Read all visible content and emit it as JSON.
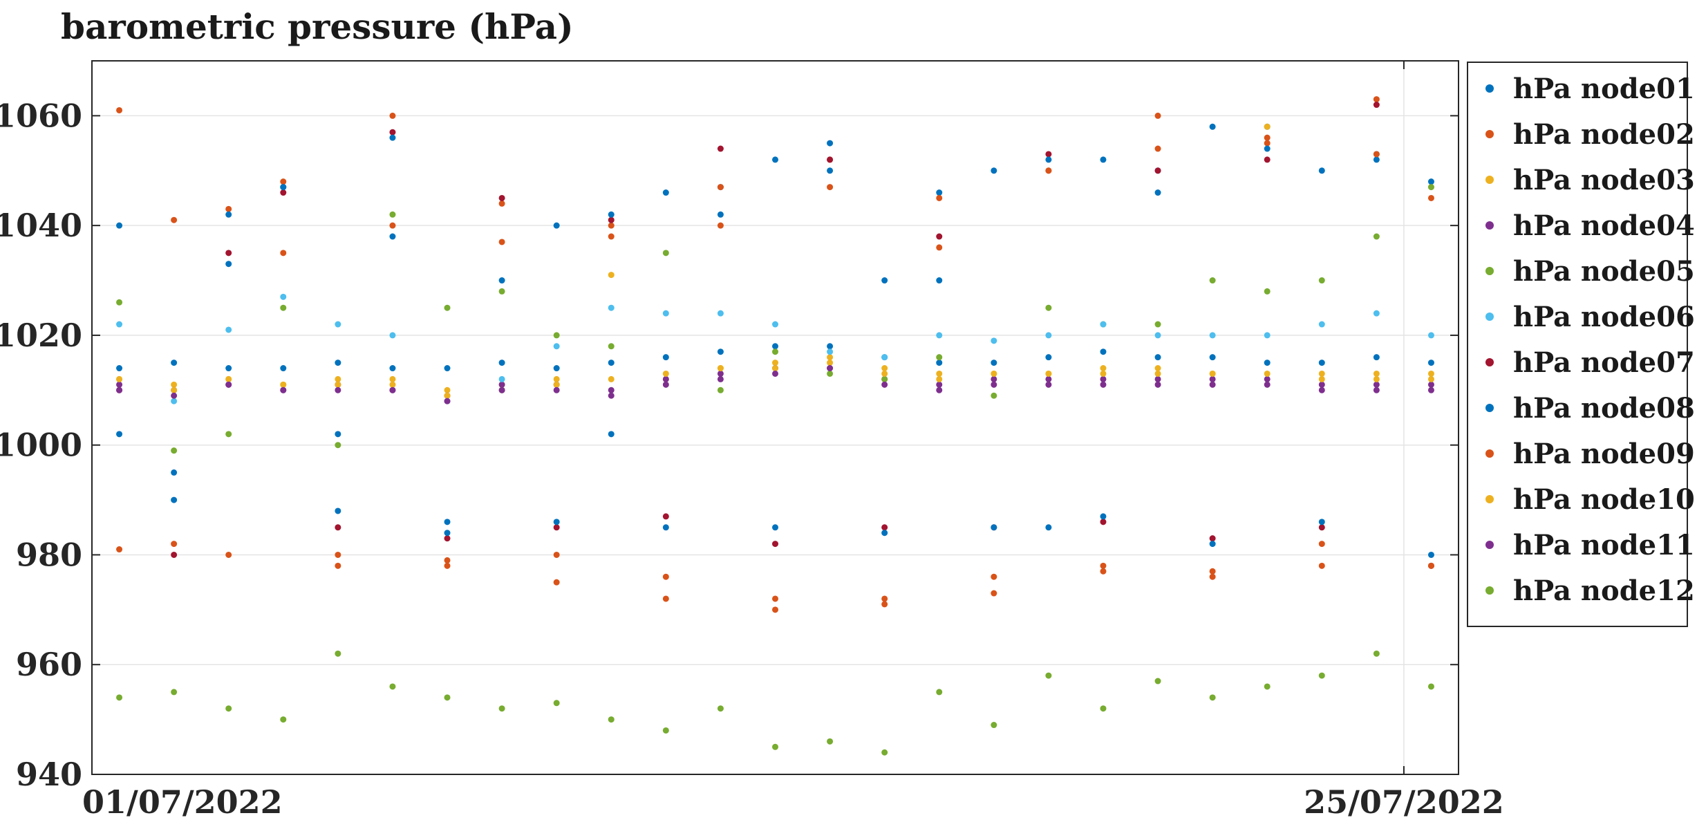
{
  "chart_data": {
    "type": "scatter",
    "title": "barometric pressure (hPa)",
    "xlabel": "",
    "ylabel": "",
    "x_unit": "date (daily reading)",
    "x_range": [
      "01/07/2022",
      "26/07/2022"
    ],
    "xticks": [
      "01/07/2022",
      "25/07/2022"
    ],
    "ylim": [
      940,
      1070
    ],
    "yticks": [
      940,
      960,
      980,
      1000,
      1020,
      1040,
      1060
    ],
    "grid": true,
    "legend_position": "outside-right",
    "x": [
      "01/07/2022",
      "02/07/2022",
      "03/07/2022",
      "04/07/2022",
      "05/07/2022",
      "06/07/2022",
      "07/07/2022",
      "08/07/2022",
      "09/07/2022",
      "10/07/2022",
      "11/07/2022",
      "12/07/2022",
      "13/07/2022",
      "14/07/2022",
      "15/07/2022",
      "16/07/2022",
      "17/07/2022",
      "18/07/2022",
      "19/07/2022",
      "20/07/2022",
      "21/07/2022",
      "22/07/2022",
      "23/07/2022",
      "24/07/2022",
      "25/07/2022"
    ],
    "series": [
      {
        "name": "hPa node01",
        "color": "#0072BD",
        "values": [
          1040,
          995,
          1033,
          1047,
          1002,
          1038,
          986,
          1010,
          1040,
          1002,
          1046,
          1047,
          1052,
          1055,
          1030,
          1046,
          1050,
          985,
          1052,
          1050,
          1058,
          1058,
          1050,
          1053,
          1048
        ],
        "baseline": [
          1014,
          1015,
          1014,
          1014,
          1015,
          1014,
          1014,
          1015,
          1014,
          1015,
          1016,
          1017,
          1018,
          1018,
          1016,
          1015,
          1015,
          1016,
          1017,
          1016,
          1016,
          1015,
          1015,
          1016,
          1015
        ]
      },
      {
        "name": "hPa node02",
        "color": "#D95319",
        "values": [
          1061,
          982,
          1043,
          1048,
          980,
          1060,
          978,
          1044,
          980,
          1040,
          976,
          1047,
          972,
          1052,
          972,
          1045,
          976,
          1050,
          977,
          1060,
          976,
          1055,
          978,
          1063,
          1045
        ]
      },
      {
        "name": "hPa node03",
        "color": "#EDB120",
        "values": [
          1012,
          1011,
          1012,
          1011,
          1012,
          1012,
          1010,
          1011,
          1012,
          1031,
          1012,
          1014,
          1015,
          1016,
          1014,
          1013,
          1013,
          1013,
          1014,
          1014,
          1013,
          1058,
          1013,
          1013,
          1013
        ]
      },
      {
        "name": "hPa node04",
        "color": "#7E2F8E",
        "values": [
          1011,
          1010,
          1011,
          1010,
          1011,
          1010,
          1009,
          1011,
          1011,
          1010,
          1012,
          1013,
          1014,
          1014,
          1012,
          1011,
          1012,
          1012,
          1012,
          1012,
          1012,
          1012,
          1011,
          1011,
          1011
        ]
      },
      {
        "name": "hPa node05",
        "color": "#77AC30",
        "values": [
          1026,
          999,
          1002,
          1025,
          1000,
          1042,
          1025,
          1028,
          1020,
          1018,
          1035,
          1010,
          1017,
          1013,
          1012,
          1016,
          1009,
          1025,
          1022,
          1022,
          1030,
          1028,
          1030,
          1038,
          1047
        ]
      },
      {
        "name": "hPa node06",
        "color": "#4DBEEE",
        "values": [
          1022,
          1008,
          1021,
          1027,
          1022,
          1020,
          1008,
          1012,
          1018,
          1025,
          1024,
          1024,
          1022,
          1017,
          1016,
          1020,
          1019,
          1020,
          1022,
          1020,
          1020,
          1020,
          1022,
          1024,
          1020
        ]
      },
      {
        "name": "hPa node07",
        "color": "#A2142F",
        "values": [
          1010,
          980,
          1035,
          1046,
          985,
          1057,
          983,
          1045,
          985,
          1041,
          987,
          1054,
          982,
          1052,
          985,
          1038,
          985,
          1053,
          986,
          1050,
          983,
          1052,
          985,
          1062,
          978
        ]
      },
      {
        "name": "hPa node08",
        "color": "#0072BD",
        "values": [
          1002,
          990,
          1042,
          1047,
          988,
          1056,
          984,
          1030,
          986,
          1042,
          985,
          1042,
          985,
          1050,
          984,
          1030,
          985,
          1052,
          987,
          1046,
          982,
          1054,
          986,
          1052,
          980
        ]
      },
      {
        "name": "hPa node09",
        "color": "#D95319",
        "values": [
          981,
          1041,
          980,
          1035,
          978,
          1040,
          979,
          1037,
          975,
          1038,
          972,
          1040,
          970,
          1047,
          971,
          1036,
          973,
          1050,
          978,
          1054,
          977,
          1056,
          982,
          1053,
          978
        ]
      },
      {
        "name": "hPa node10",
        "color": "#EDB120",
        "values": [
          1012,
          1010,
          1012,
          1011,
          1011,
          1011,
          1009,
          1010,
          1011,
          1012,
          1013,
          1014,
          1014,
          1015,
          1013,
          1012,
          1013,
          1013,
          1013,
          1013,
          1013,
          1013,
          1012,
          1012,
          1012
        ]
      },
      {
        "name": "hPa node11",
        "color": "#7E2F8E",
        "values": [
          1010,
          1009,
          1011,
          1010,
          1010,
          1010,
          1008,
          1010,
          1010,
          1009,
          1011,
          1012,
          1013,
          1014,
          1011,
          1010,
          1011,
          1011,
          1011,
          1011,
          1011,
          1011,
          1010,
          1010,
          1010
        ]
      },
      {
        "name": "hPa node12",
        "color": "#77AC30",
        "values": [
          954,
          955,
          952,
          950,
          962,
          956,
          954,
          952,
          953,
          950,
          948,
          952,
          945,
          946,
          944,
          955,
          949,
          958,
          952,
          957,
          954,
          956,
          958,
          962,
          956
        ]
      }
    ]
  }
}
